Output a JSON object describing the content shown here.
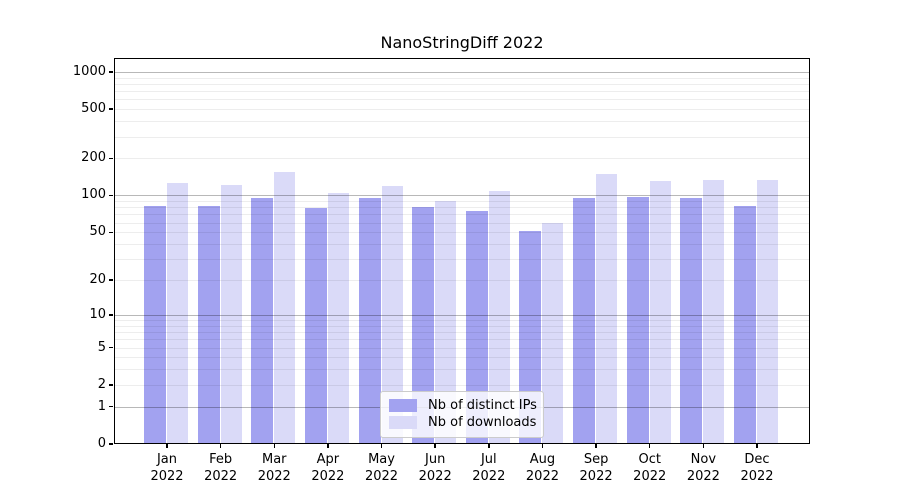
{
  "title": "NanoStringDiff 2022",
  "legend": {
    "items": [
      {
        "label": "Nb of distinct IPs",
        "color": "#a2a2f0"
      },
      {
        "label": "Nb of downloads",
        "color": "#dadaf8"
      }
    ]
  },
  "colors": {
    "bar_distinct_ips": "#a2a2f0",
    "bar_downloads": "#dadaf8",
    "grid_major": "rgba(0,0,0,0.28)",
    "grid_minor": "rgba(0,0,0,0.07)",
    "axis": "#000000",
    "background": "#ffffff"
  },
  "chart_data": {
    "type": "bar",
    "title": "NanoStringDiff 2022",
    "categories": [
      "Jan 2022",
      "Feb 2022",
      "Mar 2022",
      "Apr 2022",
      "May 2022",
      "Jun 2022",
      "Jul 2022",
      "Aug 2022",
      "Sep 2022",
      "Oct 2022",
      "Nov 2022",
      "Dec 2022"
    ],
    "month_labels": [
      "Jan",
      "Feb",
      "Mar",
      "Apr",
      "May",
      "Jun",
      "Jul",
      "Aug",
      "Sep",
      "Oct",
      "Nov",
      "Dec"
    ],
    "year_label": "2022",
    "series": [
      {
        "name": "Nb of distinct IPs",
        "color": "#a2a2f0",
        "values": [
          82,
          82,
          95,
          79,
          95,
          80,
          75,
          51,
          95,
          98,
          96,
          82
        ]
      },
      {
        "name": "Nb of downloads",
        "color": "#dadaf8",
        "values": [
          126,
          122,
          155,
          105,
          119,
          90,
          109,
          60,
          149,
          131,
          134,
          134
        ]
      }
    ],
    "xlabel": "",
    "ylabel": "",
    "y_scale": "log1p",
    "y_ticks": [
      0,
      1,
      2,
      5,
      10,
      20,
      50,
      100,
      200,
      500,
      1000
    ],
    "y_major_gridlines": [
      1,
      10,
      100,
      1000
    ],
    "ylim": [
      0,
      1320
    ],
    "grid": "on, drawn over bars",
    "legend_position": "lower center (inside axes)"
  }
}
